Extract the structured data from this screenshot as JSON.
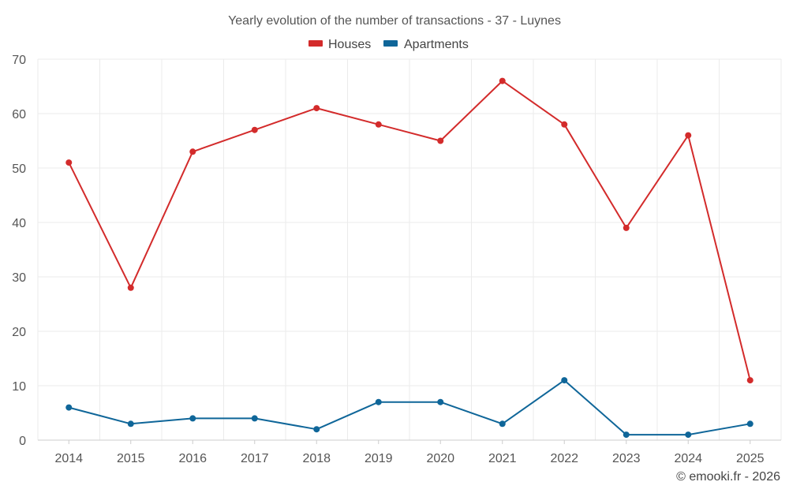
{
  "chart_data": {
    "type": "line",
    "title": "Yearly evolution of the number of transactions - 37 - Luynes",
    "categories": [
      "2014",
      "2015",
      "2016",
      "2017",
      "2018",
      "2019",
      "2020",
      "2021",
      "2022",
      "2023",
      "2024",
      "2025"
    ],
    "series": [
      {
        "name": "Houses",
        "color": "#d32b2b",
        "values": [
          51,
          28,
          53,
          57,
          61,
          58,
          55,
          66,
          58,
          39,
          56,
          11
        ]
      },
      {
        "name": "Apartments",
        "color": "#0f6699",
        "values": [
          6,
          3,
          4,
          4,
          2,
          7,
          7,
          3,
          11,
          1,
          1,
          3
        ]
      }
    ],
    "ylim": [
      0,
      70
    ],
    "yticks": [
      0,
      10,
      20,
      30,
      40,
      50,
      60,
      70
    ],
    "xlabel": "",
    "ylabel": "",
    "grid": true,
    "legend_position": "top-center"
  },
  "credit": "© emooki.fr - 2026"
}
